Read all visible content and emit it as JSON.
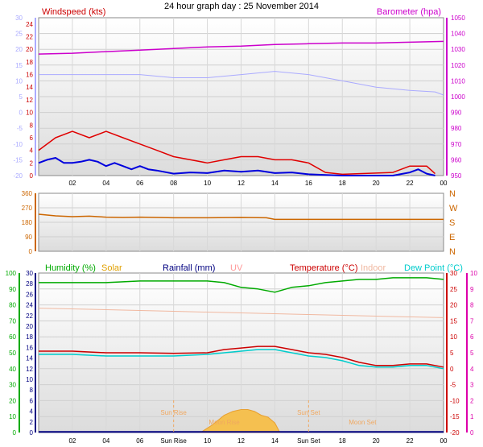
{
  "title": "24 hour graph day : 25 November 2014",
  "x_ticks": [
    "02",
    "04",
    "06",
    "08",
    "10",
    "12",
    "14",
    "16",
    "18",
    "20",
    "22",
    "00"
  ],
  "colors": {
    "wind": "#e00000",
    "gust_avg": "#0000dd",
    "baro": "#cc00cc",
    "temp_axis": "#aaaaff",
    "dir": "#cc6600",
    "humidity": "#00aa00",
    "solar": "#e0a000",
    "rain": "#000080",
    "uv": "#ff9999",
    "temperature": "#cc0000",
    "indoor": "#f0b8a0",
    "dew": "#00cccc",
    "moon": "#f0a860"
  },
  "chart_data": [
    {
      "type": "line",
      "name": "wind-baro",
      "labels": {
        "left": "Windspeed (kts)",
        "right": "Barometer (hpa)"
      },
      "left_axis": {
        "ticks": [
          "-20",
          "-15",
          "-10",
          "-5",
          "0",
          "5",
          "10",
          "15",
          "20",
          "25",
          "30"
        ],
        "range": [
          -20,
          30
        ]
      },
      "wind_axis": {
        "ticks": [
          "0",
          "2",
          "4",
          "6",
          "8",
          "10",
          "12",
          "14",
          "16",
          "18",
          "20",
          "22",
          "24"
        ],
        "range": [
          0,
          25
        ]
      },
      "right_axis": {
        "ticks": [
          "950",
          "960",
          "970",
          "980",
          "990",
          "1000",
          "1010",
          "1020",
          "1030",
          "1040",
          "1050"
        ],
        "range": [
          950,
          1050
        ]
      },
      "series": [
        {
          "key": "baro",
          "x": [
            0,
            2,
            4,
            6,
            8,
            10,
            12,
            14,
            16,
            18,
            20,
            22,
            24
          ],
          "y": [
            1027,
            1027.5,
            1028.5,
            1029.5,
            1030.5,
            1031.5,
            1032,
            1033,
            1033.5,
            1034,
            1034,
            1034.5,
            1035
          ]
        },
        {
          "key": "temp_axis",
          "x": [
            0,
            2,
            4,
            6,
            8,
            10,
            12,
            14,
            16,
            18,
            20,
            22,
            23.5,
            24
          ],
          "y": [
            12,
            12,
            12,
            12,
            11,
            11,
            12,
            13,
            12,
            10,
            8,
            7,
            6.5,
            5.5
          ]
        },
        {
          "key": "wind",
          "x": [
            0,
            1,
            2,
            3,
            4,
            5,
            6,
            7,
            8,
            9,
            10,
            11,
            12,
            13,
            14,
            15,
            16,
            17,
            18,
            19,
            20,
            21,
            22,
            23,
            23.5
          ],
          "y": [
            4,
            6,
            7,
            6,
            7,
            6,
            5,
            4,
            3,
            2.5,
            2,
            2.5,
            3,
            3,
            2.5,
            2.5,
            2,
            0.5,
            0.2,
            0.3,
            0.4,
            0.5,
            1.5,
            1.5,
            0.3
          ]
        },
        {
          "key": "gust_avg",
          "x": [
            0,
            0.5,
            1,
            1.5,
            2,
            2.5,
            3,
            3.5,
            4,
            4.5,
            5,
            5.5,
            6,
            6.5,
            7,
            8,
            9,
            10,
            11,
            12,
            13,
            14,
            15,
            16,
            17,
            18,
            19,
            20,
            21,
            22,
            22.5,
            23,
            23.5
          ],
          "y": [
            2,
            2.5,
            2.8,
            2,
            2,
            2.2,
            2.5,
            2.2,
            1.5,
            2,
            1.5,
            1,
            1.5,
            1,
            0.8,
            0.3,
            0.5,
            0.4,
            0.8,
            0.6,
            0.8,
            0.4,
            0.5,
            0.2,
            0.1,
            0,
            0,
            0,
            0,
            0.5,
            1,
            0.3,
            0
          ]
        }
      ]
    },
    {
      "type": "line",
      "name": "wind-direction",
      "left_axis": {
        "ticks": [
          "0",
          "90",
          "180",
          "270",
          "360"
        ],
        "range": [
          0,
          360
        ]
      },
      "right_labels": [
        "N",
        "W",
        "S",
        "E",
        "N"
      ],
      "series": [
        {
          "key": "dir",
          "x": [
            0,
            1,
            2,
            3,
            4,
            5,
            6,
            7,
            8,
            10,
            12,
            13.5,
            14,
            16,
            18,
            20,
            22,
            24
          ],
          "y": [
            230,
            220,
            215,
            218,
            212,
            210,
            212,
            210,
            208,
            208,
            210,
            208,
            198,
            198,
            198,
            198,
            198,
            198
          ]
        }
      ]
    },
    {
      "type": "line",
      "name": "temperature-humidity",
      "labels": {
        "humidity": "Humidity (%)",
        "solar": "Solar",
        "rain": "Rainfall (mm)",
        "uv": "UV",
        "temp": "Temperature (°C)",
        "indoor": "Indoor",
        "dew": "Dew Point (°C)"
      },
      "hum_axis": {
        "ticks": [
          "0",
          "10",
          "20",
          "30",
          "40",
          "50",
          "60",
          "70",
          "80",
          "90",
          "100"
        ],
        "range": [
          0,
          100
        ]
      },
      "rain_axis": {
        "ticks": [
          "0",
          "2",
          "4",
          "6",
          "8",
          "10",
          "12",
          "14",
          "16",
          "18",
          "20",
          "22",
          "24",
          "26",
          "28",
          "30"
        ],
        "range": [
          0,
          30
        ]
      },
      "temp_axis": {
        "ticks": [
          "-20",
          "-15",
          "-10",
          "-5",
          "0",
          "5",
          "10",
          "15",
          "20",
          "25",
          "30"
        ],
        "range": [
          -20,
          30
        ]
      },
      "uv_axis": {
        "ticks": [
          "0",
          "1",
          "2",
          "3",
          "4",
          "5",
          "6",
          "7",
          "8",
          "9",
          "10"
        ],
        "range": [
          0,
          10
        ]
      },
      "series": [
        {
          "key": "humidity",
          "x": [
            0,
            2,
            4,
            6,
            8,
            9,
            10,
            11,
            12,
            13,
            14,
            15,
            16,
            17,
            18,
            19,
            20,
            21,
            22,
            23,
            24
          ],
          "y": [
            94,
            94,
            94,
            95,
            95,
            95,
            95,
            94,
            91,
            90,
            88,
            91,
            92,
            94,
            95,
            96,
            96,
            97,
            97,
            97,
            96
          ]
        },
        {
          "key": "indoor",
          "x": [
            0,
            4,
            8,
            12,
            16,
            20,
            24
          ],
          "y": [
            19,
            18.5,
            18,
            17.5,
            17,
            16.5,
            16
          ]
        },
        {
          "key": "temperature",
          "x": [
            0,
            2,
            4,
            6,
            8,
            10,
            11,
            12,
            13,
            14,
            15,
            16,
            17,
            18,
            19,
            20,
            21,
            22,
            23,
            24
          ],
          "y": [
            5.5,
            5.5,
            5,
            5,
            4.8,
            5,
            6,
            6.5,
            7,
            7,
            6,
            5,
            4.5,
            3.5,
            2,
            1,
            1,
            1.5,
            1.5,
            0.5
          ]
        },
        {
          "key": "dew",
          "x": [
            0,
            2,
            4,
            6,
            8,
            10,
            11,
            12,
            13,
            14,
            15,
            16,
            17,
            18,
            19,
            20,
            21,
            22,
            23,
            24
          ],
          "y": [
            4.5,
            4.5,
            4,
            4,
            4,
            4.5,
            5,
            5.5,
            6,
            6,
            5,
            4,
            3.5,
            2.5,
            1,
            0.5,
            0.5,
            1,
            1,
            0
          ]
        },
        {
          "key": "solar",
          "x": [
            9.6,
            10.3,
            11,
            11.5,
            12,
            12.4,
            12.8,
            13.2,
            13.6,
            14,
            14.3
          ],
          "y": [
            0,
            2,
            4.5,
            5.5,
            6,
            6,
            5.5,
            4.5,
            4,
            2.5,
            0
          ]
        },
        {
          "key": "rain",
          "x": [
            0,
            24
          ],
          "y": [
            0.1,
            0.1
          ]
        }
      ],
      "annotations": [
        {
          "text": "Sun Rise",
          "x": 8
        },
        {
          "text": "Sun Set",
          "x": 16
        },
        {
          "text": "Moon Set",
          "x": 19.2
        },
        {
          "text": "Moon Rise",
          "x": 11
        }
      ],
      "x_bottom_labels": [
        "02",
        "04",
        "06",
        "Sun Rise",
        "10",
        "12",
        "14",
        "Sun Set",
        "18",
        "20",
        "22",
        "00"
      ]
    }
  ]
}
